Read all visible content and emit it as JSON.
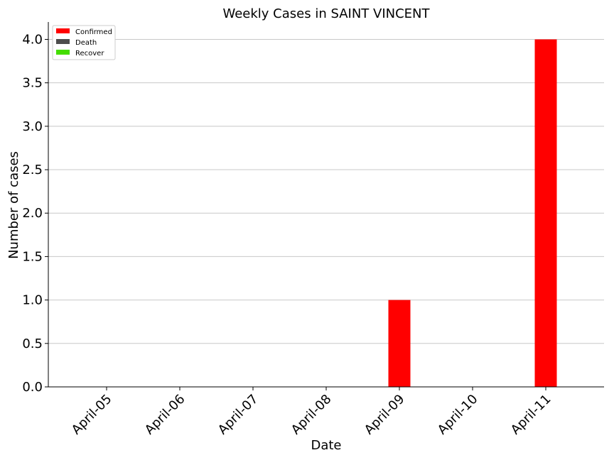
{
  "chart_data": {
    "type": "bar",
    "title": "Weekly Cases in SAINT VINCENT",
    "xlabel": "Date",
    "ylabel": "Number of cases",
    "categories": [
      "April-05",
      "April-06",
      "April-07",
      "April-08",
      "April-09",
      "April-10",
      "April-11"
    ],
    "series": [
      {
        "name": "Confirmed",
        "color": "#ff0000",
        "values": [
          0,
          0,
          0,
          0,
          1,
          0,
          4
        ]
      },
      {
        "name": "Death",
        "color": "#4d4d4d",
        "values": [
          0,
          0,
          0,
          0,
          0,
          0,
          0
        ]
      },
      {
        "name": "Recover",
        "color": "#44dd00",
        "values": [
          0,
          0,
          0,
          0,
          0,
          0,
          0
        ]
      }
    ],
    "ylim": [
      0,
      4.2
    ],
    "yticks": [
      "0.0",
      "0.5",
      "1.0",
      "1.5",
      "2.0",
      "2.5",
      "3.0",
      "3.5",
      "4.0"
    ],
    "grid": "horizontal",
    "legend_position": "top-left"
  }
}
